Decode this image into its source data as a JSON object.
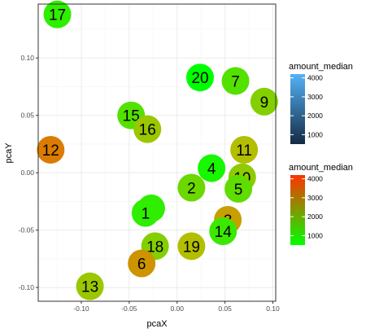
{
  "chart_data": {
    "type": "scatter",
    "xlabel": "pcaX",
    "ylabel": "pcaY",
    "xlim": [
      -0.145,
      0.103
    ],
    "ylim": [
      -0.112,
      0.147
    ],
    "x_ticks": [
      -0.1,
      -0.05,
      0.0,
      0.05,
      0.1
    ],
    "x_tick_labels": [
      "-0.10",
      "-0.05",
      "0.00",
      "0.05",
      "0.10"
    ],
    "y_ticks": [
      -0.1,
      -0.05,
      0.0,
      0.05,
      0.1
    ],
    "y_tick_labels": [
      "-0.10",
      "-0.05",
      "0.00",
      "0.05",
      "0.10"
    ],
    "grid": true,
    "legend_position": "right",
    "points": [
      {
        "label": "17",
        "x": -0.125,
        "y": 0.138,
        "amount_median": 900
      },
      {
        "label": "20",
        "x": 0.024,
        "y": 0.083,
        "amount_median": 400
      },
      {
        "label": "7",
        "x": 0.061,
        "y": 0.08,
        "amount_median": 1200
      },
      {
        "label": "9",
        "x": 0.091,
        "y": 0.062,
        "amount_median": 1600
      },
      {
        "label": "15",
        "x": -0.048,
        "y": 0.05,
        "amount_median": 1200
      },
      {
        "label": "16",
        "x": -0.031,
        "y": 0.038,
        "amount_median": 1800
      },
      {
        "label": "12",
        "x": -0.132,
        "y": 0.02,
        "amount_median": 3200
      },
      {
        "label": "11",
        "x": 0.07,
        "y": 0.02,
        "amount_median": 2000
      },
      {
        "label": "4",
        "x": 0.036,
        "y": 0.004,
        "amount_median": 700
      },
      {
        "label": "10",
        "x": 0.068,
        "y": -0.004,
        "amount_median": 1700
      },
      {
        "label": "2",
        "x": 0.015,
        "y": -0.013,
        "amount_median": 1400
      },
      {
        "label": "5",
        "x": 0.064,
        "y": -0.014,
        "amount_median": 1300
      },
      {
        "label": "8",
        "x": -0.027,
        "y": -0.031,
        "amount_median": 900
      },
      {
        "label": "1",
        "x": -0.033,
        "y": -0.035,
        "amount_median": 900
      },
      {
        "label": "3",
        "x": 0.053,
        "y": -0.041,
        "amount_median": 2600
      },
      {
        "label": "14",
        "x": 0.048,
        "y": -0.051,
        "amount_median": 1000
      },
      {
        "label": "18",
        "x": -0.023,
        "y": -0.064,
        "amount_median": 1600
      },
      {
        "label": "19",
        "x": 0.015,
        "y": -0.064,
        "amount_median": 2000
      },
      {
        "label": "6",
        "x": -0.037,
        "y": -0.079,
        "amount_median": 2800
      },
      {
        "label": "13",
        "x": -0.091,
        "y": -0.099,
        "amount_median": 1800
      }
    ],
    "legends": [
      {
        "title": "amount_median",
        "colors": [
          "#132B43",
          "#56B1F7"
        ],
        "ticks": [
          1000,
          2000,
          3000,
          4000
        ],
        "range": [
          500,
          4200
        ]
      },
      {
        "title": "amount_median",
        "colors": [
          "#00FF00",
          "#FF3300"
        ],
        "ticks": [
          1000,
          2000,
          3000,
          4000
        ],
        "range": [
          500,
          4200
        ]
      }
    ]
  },
  "colors": {
    "panel_border": "#333333",
    "grid_major": "#ebebeb",
    "grid_minor": "#f5f5f5"
  }
}
